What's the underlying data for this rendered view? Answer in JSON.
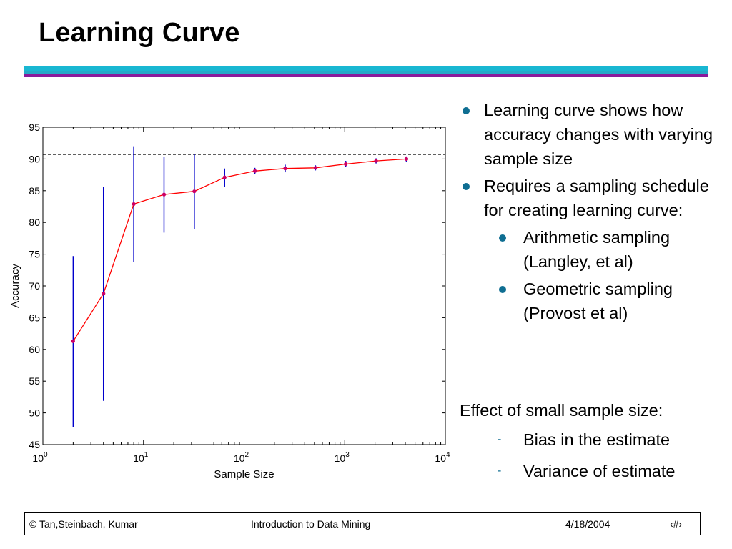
{
  "slide": {
    "title": "Learning Curve",
    "bullets": [
      "Learning curve shows how accuracy changes with varying sample size",
      "Requires a sampling schedule for creating learning curve:"
    ],
    "sub_bullets": [
      "Arithmetic sampling (Langley, et al)",
      "Geometric sampling (Provost et al)"
    ],
    "effect_heading": "Effect of small sample size:",
    "effect_items": [
      "Bias in the estimate",
      "Variance of estimate"
    ],
    "colors": {
      "accent_cyan": "#19b7d2",
      "accent_purple": "#8a1a9c",
      "bullet": "#0f6e92"
    }
  },
  "footer": {
    "authors": "© Tan,Steinbach, Kumar",
    "course": "Introduction to Data Mining",
    "date": "4/18/2004",
    "page": "‹#›"
  },
  "chart_data": {
    "type": "line",
    "xlabel": "Sample Size",
    "ylabel": "Accuracy",
    "xscale": "log",
    "xlim": [
      1,
      10000
    ],
    "ylim": [
      45,
      95
    ],
    "x_ticks": [
      {
        "base": "10",
        "exp": "0"
      },
      {
        "base": "10",
        "exp": "1"
      },
      {
        "base": "10",
        "exp": "2"
      },
      {
        "base": "10",
        "exp": "3"
      },
      {
        "base": "10",
        "exp": "4"
      }
    ],
    "y_ticks": [
      "45",
      "50",
      "55",
      "60",
      "65",
      "70",
      "75",
      "80",
      "85",
      "90",
      "95"
    ],
    "reference_line": 90.7,
    "series": [
      {
        "x": [
          2,
          4,
          8,
          16,
          32,
          64,
          128,
          256,
          512,
          1024,
          2048,
          4096
        ],
        "y": [
          61.3,
          68.8,
          82.9,
          84.4,
          84.9,
          87.1,
          88.1,
          88.5,
          88.6,
          89.2,
          89.7,
          90.0
        ],
        "err_low": [
          47.8,
          51.9,
          73.8,
          78.4,
          78.9,
          85.6,
          87.6,
          87.9,
          88.2,
          88.7,
          89.3,
          89.6
        ],
        "err_high": [
          74.7,
          85.6,
          92.0,
          90.3,
          90.8,
          88.5,
          88.6,
          89.1,
          89.0,
          89.7,
          90.1,
          90.4
        ]
      }
    ],
    "colors": {
      "line": "#ff0000",
      "marker": "#cc0066",
      "errorbar": "#0000cc",
      "axis": "#000000"
    }
  }
}
